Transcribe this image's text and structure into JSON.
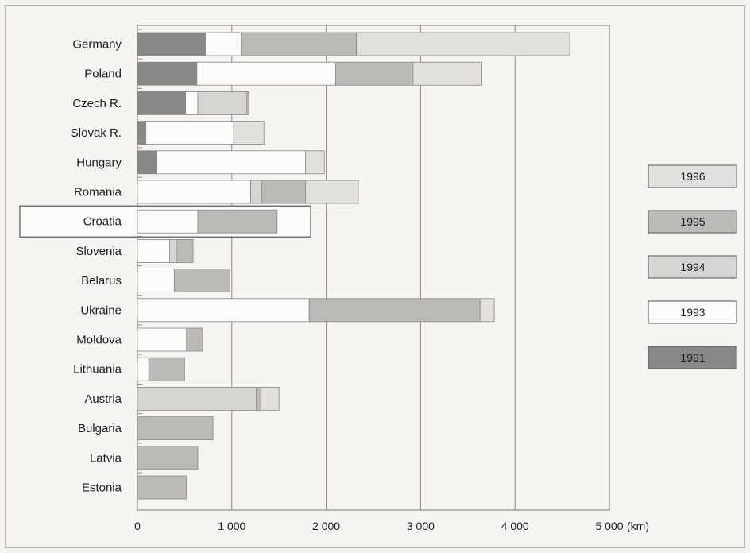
{
  "chart_data": {
    "type": "bar",
    "orientation": "horizontal",
    "stacked": true,
    "categories": [
      "Germany",
      "Poland",
      "Czech R.",
      "Slovak R.",
      "Hungary",
      "Romania",
      "Croatia",
      "Slovenia",
      "Belarus",
      "Ukraine",
      "Moldova",
      "Lithuania",
      "Austria",
      "Bulgaria",
      "Latvia",
      "Estonia"
    ],
    "highlighted_category": "Croatia",
    "x_ticks": [
      "0",
      "1 000",
      "2 000",
      "3 000",
      "4 000",
      "5 000"
    ],
    "x_unit": "(km)",
    "xlim": [
      0,
      5000
    ],
    "grid": true,
    "legend_position": "right",
    "series": [
      {
        "name": "1991",
        "color": "#8a8886",
        "values": [
          720,
          630,
          510,
          90,
          200,
          0,
          0,
          0,
          0,
          0,
          0,
          0,
          0,
          0,
          0,
          0
        ]
      },
      {
        "name": "1993",
        "color": "#fbfbf9",
        "values": [
          380,
          1470,
          130,
          930,
          1580,
          1200,
          640,
          340,
          390,
          1820,
          520,
          120,
          0,
          0,
          0,
          0
        ]
      },
      {
        "name": "1994",
        "color": "#d7d5d2",
        "values": [
          0,
          0,
          520,
          0,
          0,
          120,
          0,
          80,
          0,
          0,
          0,
          0,
          1260,
          0,
          0,
          0
        ]
      },
      {
        "name": "1995",
        "color": "#bcbab7",
        "values": [
          1220,
          820,
          20,
          0,
          0,
          460,
          840,
          170,
          590,
          1810,
          170,
          380,
          50,
          800,
          640,
          520
        ]
      },
      {
        "name": "1996",
        "color": "#e2e0dd",
        "values": [
          2260,
          730,
          0,
          320,
          200,
          560,
          0,
          0,
          0,
          150,
          0,
          0,
          190,
          0,
          0,
          0
        ]
      }
    ],
    "legend_order": [
      "1996",
      "1995",
      "1994",
      "1993",
      "1991"
    ]
  }
}
